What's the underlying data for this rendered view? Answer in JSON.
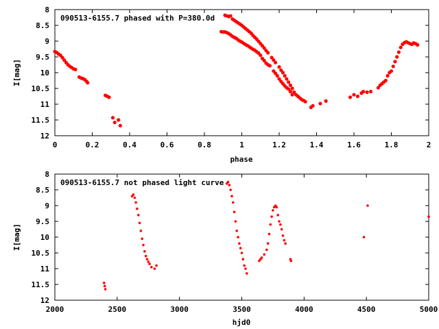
{
  "chart_data": [
    {
      "type": "scatter",
      "title": "090513-6155.7 phased with P=380.0d",
      "xlabel": "phase",
      "ylabel": "I[mag]",
      "xlim": [
        0,
        2
      ],
      "ylim": [
        12,
        8
      ],
      "y_inverted": true,
      "xticks": [
        0,
        0.2,
        0.4,
        0.6,
        0.8,
        1,
        1.2,
        1.4,
        1.6,
        1.8,
        2
      ],
      "xtick_labels": [
        "0",
        "0.2",
        "0.4",
        "0.6",
        "0.8",
        "1",
        "1.2",
        "1.4",
        "1.6",
        "1.8",
        "2"
      ],
      "yticks": [
        8,
        8.5,
        9,
        9.5,
        10,
        10.5,
        11,
        11.5,
        12
      ],
      "ytick_labels": [
        "8",
        "8.5",
        "9",
        "9.5",
        "10",
        "10.5",
        "11",
        "11.5",
        "12"
      ],
      "grid": false,
      "marker_color": "#ff0000",
      "points": [
        [
          0.0,
          9.33
        ],
        [
          0.01,
          9.36
        ],
        [
          0.02,
          9.41
        ],
        [
          0.03,
          9.45
        ],
        [
          0.04,
          9.52
        ],
        [
          0.05,
          9.6
        ],
        [
          0.06,
          9.68
        ],
        [
          0.07,
          9.75
        ],
        [
          0.08,
          9.8
        ],
        [
          0.09,
          9.84
        ],
        [
          0.1,
          9.88
        ],
        [
          0.11,
          9.9
        ],
        [
          0.13,
          10.14
        ],
        [
          0.14,
          10.17
        ],
        [
          0.15,
          10.19
        ],
        [
          0.16,
          10.22
        ],
        [
          0.17,
          10.28
        ],
        [
          0.175,
          10.32
        ],
        [
          0.27,
          10.72
        ],
        [
          0.28,
          10.75
        ],
        [
          0.29,
          10.78
        ],
        [
          0.31,
          11.43
        ],
        [
          0.32,
          11.58
        ],
        [
          0.34,
          11.5
        ],
        [
          0.35,
          11.68
        ],
        [
          0.89,
          8.7
        ],
        [
          0.9,
          8.71
        ],
        [
          0.91,
          8.71
        ],
        [
          0.92,
          8.73
        ],
        [
          0.93,
          8.76
        ],
        [
          0.94,
          8.8
        ],
        [
          0.95,
          8.85
        ],
        [
          0.96,
          8.88
        ],
        [
          0.97,
          8.91
        ],
        [
          0.98,
          8.96
        ],
        [
          0.99,
          9.0
        ],
        [
          1.0,
          9.03
        ],
        [
          1.01,
          9.07
        ],
        [
          1.02,
          9.11
        ],
        [
          1.03,
          9.14
        ],
        [
          1.04,
          9.18
        ],
        [
          1.05,
          9.22
        ],
        [
          1.06,
          9.26
        ],
        [
          1.07,
          9.29
        ],
        [
          1.08,
          9.34
        ],
        [
          1.09,
          9.38
        ],
        [
          1.1,
          9.45
        ],
        [
          1.11,
          9.55
        ],
        [
          1.12,
          9.62
        ],
        [
          1.13,
          9.7
        ],
        [
          1.14,
          9.75
        ],
        [
          1.15,
          9.78
        ],
        [
          1.17,
          9.95
        ],
        [
          1.18,
          10.02
        ],
        [
          1.19,
          10.1
        ],
        [
          1.2,
          10.2
        ],
        [
          1.21,
          10.28
        ],
        [
          1.22,
          10.35
        ],
        [
          1.23,
          10.42
        ],
        [
          1.24,
          10.48
        ],
        [
          1.25,
          10.52
        ],
        [
          1.26,
          10.6
        ],
        [
          1.27,
          10.7
        ],
        [
          0.91,
          8.18
        ],
        [
          0.92,
          8.2
        ],
        [
          0.93,
          8.22
        ],
        [
          0.94,
          8.2
        ],
        [
          0.95,
          8.3
        ],
        [
          0.96,
          8.34
        ],
        [
          0.97,
          8.38
        ],
        [
          0.98,
          8.42
        ],
        [
          0.99,
          8.46
        ],
        [
          1.0,
          8.5
        ],
        [
          1.01,
          8.55
        ],
        [
          1.02,
          8.6
        ],
        [
          1.03,
          8.65
        ],
        [
          1.04,
          8.7
        ],
        [
          1.05,
          8.75
        ],
        [
          1.06,
          8.82
        ],
        [
          1.07,
          8.88
        ],
        [
          1.08,
          8.94
        ],
        [
          1.09,
          9.01
        ],
        [
          1.1,
          9.08
        ],
        [
          1.11,
          9.15
        ],
        [
          1.12,
          9.22
        ],
        [
          1.13,
          9.3
        ],
        [
          1.14,
          9.37
        ],
        [
          1.16,
          9.52
        ],
        [
          1.17,
          9.6
        ],
        [
          1.18,
          9.68
        ],
        [
          1.2,
          9.82
        ],
        [
          1.21,
          9.92
        ],
        [
          1.22,
          10.0
        ],
        [
          1.23,
          10.1
        ],
        [
          1.24,
          10.2
        ],
        [
          1.25,
          10.3
        ],
        [
          1.26,
          10.4
        ],
        [
          1.27,
          10.5
        ],
        [
          1.28,
          10.62
        ],
        [
          1.29,
          10.7
        ],
        [
          1.3,
          10.75
        ],
        [
          1.31,
          10.8
        ],
        [
          1.32,
          10.85
        ],
        [
          1.33,
          10.88
        ],
        [
          1.34,
          10.92
        ],
        [
          1.37,
          11.1
        ],
        [
          1.38,
          11.05
        ],
        [
          1.42,
          10.98
        ],
        [
          1.45,
          10.9
        ],
        [
          1.58,
          10.78
        ],
        [
          1.6,
          10.7
        ],
        [
          1.62,
          10.75
        ],
        [
          1.64,
          10.65
        ],
        [
          1.65,
          10.6
        ],
        [
          1.67,
          10.62
        ],
        [
          1.69,
          10.6
        ],
        [
          1.73,
          10.48
        ],
        [
          1.74,
          10.4
        ],
        [
          1.75,
          10.35
        ],
        [
          1.76,
          10.3
        ],
        [
          1.77,
          10.25
        ],
        [
          1.78,
          10.1
        ],
        [
          1.79,
          10.0
        ],
        [
          1.8,
          9.95
        ],
        [
          1.81,
          9.8
        ],
        [
          1.82,
          9.65
        ],
        [
          1.83,
          9.5
        ],
        [
          1.84,
          9.35
        ],
        [
          1.85,
          9.2
        ],
        [
          1.86,
          9.1
        ],
        [
          1.87,
          9.05
        ],
        [
          1.88,
          9.02
        ],
        [
          1.89,
          9.05
        ],
        [
          1.9,
          9.08
        ],
        [
          1.91,
          9.1
        ],
        [
          1.92,
          9.06
        ],
        [
          1.93,
          9.08
        ],
        [
          1.94,
          9.12
        ]
      ]
    },
    {
      "type": "scatter",
      "title": "090513-6155.7 not phased light curve",
      "xlabel": "hjd0",
      "ylabel": "I[mag]",
      "xlim": [
        2000,
        5000
      ],
      "ylim": [
        12,
        8
      ],
      "y_inverted": true,
      "xticks": [
        2000,
        2500,
        3000,
        3500,
        4000,
        4500,
        5000
      ],
      "xtick_labels": [
        "2000",
        "2500",
        "3000",
        "3500",
        "4000",
        "4500",
        "5000"
      ],
      "yticks": [
        8,
        8.5,
        9,
        9.5,
        10,
        10.5,
        11,
        11.5,
        12
      ],
      "ytick_labels": [
        "8",
        "8.5",
        "9",
        "9.5",
        "10",
        "10.5",
        "11",
        "11.5",
        "12"
      ],
      "grid": false,
      "marker_color": "#ff0000",
      "points": [
        [
          2395,
          11.45
        ],
        [
          2400,
          11.55
        ],
        [
          2405,
          11.65
        ],
        [
          2620,
          8.7
        ],
        [
          2630,
          8.65
        ],
        [
          2640,
          8.75
        ],
        [
          2650,
          8.9
        ],
        [
          2660,
          9.1
        ],
        [
          2670,
          9.3
        ],
        [
          2680,
          9.55
        ],
        [
          2690,
          9.8
        ],
        [
          2700,
          10.05
        ],
        [
          2710,
          10.25
        ],
        [
          2720,
          10.45
        ],
        [
          2730,
          10.6
        ],
        [
          2740,
          10.7
        ],
        [
          2750,
          10.78
        ],
        [
          2760,
          10.85
        ],
        [
          2775,
          10.95
        ],
        [
          2800,
          11.0
        ],
        [
          2815,
          10.9
        ],
        [
          3380,
          8.3
        ],
        [
          3390,
          8.25
        ],
        [
          3400,
          8.35
        ],
        [
          3410,
          8.5
        ],
        [
          3420,
          8.7
        ],
        [
          3430,
          8.9
        ],
        [
          3440,
          9.2
        ],
        [
          3450,
          9.5
        ],
        [
          3460,
          9.8
        ],
        [
          3470,
          10.0
        ],
        [
          3480,
          10.2
        ],
        [
          3490,
          10.35
        ],
        [
          3500,
          10.5
        ],
        [
          3510,
          10.7
        ],
        [
          3520,
          10.9
        ],
        [
          3530,
          11.0
        ],
        [
          3540,
          11.15
        ],
        [
          3640,
          10.75
        ],
        [
          3650,
          10.7
        ],
        [
          3660,
          10.65
        ],
        [
          3680,
          10.55
        ],
        [
          3700,
          10.4
        ],
        [
          3710,
          10.2
        ],
        [
          3720,
          9.9
        ],
        [
          3730,
          9.6
        ],
        [
          3740,
          9.35
        ],
        [
          3750,
          9.15
        ],
        [
          3760,
          9.05
        ],
        [
          3770,
          9.0
        ],
        [
          3780,
          9.05
        ],
        [
          3790,
          9.3
        ],
        [
          3800,
          9.5
        ],
        [
          3810,
          9.6
        ],
        [
          3820,
          9.75
        ],
        [
          3830,
          9.95
        ],
        [
          3840,
          10.1
        ],
        [
          3850,
          10.2
        ],
        [
          3890,
          10.7
        ],
        [
          3895,
          10.75
        ],
        [
          4480,
          10.0
        ],
        [
          4510,
          9.0
        ],
        [
          5000,
          9.35
        ]
      ]
    }
  ]
}
